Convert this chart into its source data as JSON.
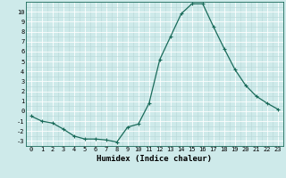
{
  "title": "",
  "xlabel": "Humidex (Indice chaleur)",
  "x": [
    0,
    1,
    2,
    3,
    4,
    5,
    6,
    7,
    8,
    9,
    10,
    11,
    12,
    13,
    14,
    15,
    16,
    17,
    18,
    19,
    20,
    21,
    22,
    23
  ],
  "y": [
    -0.5,
    -1.0,
    -1.2,
    -1.8,
    -2.5,
    -2.8,
    -2.8,
    -2.9,
    -3.1,
    -1.6,
    -1.3,
    0.8,
    5.2,
    7.5,
    9.8,
    10.8,
    10.8,
    8.5,
    6.3,
    4.2,
    2.6,
    1.5,
    0.8,
    0.2
  ],
  "line_color": "#1a6b5a",
  "marker": "+",
  "marker_size": 3,
  "marker_linewidth": 0.8,
  "line_width": 0.9,
  "bg_color": "#ceeaea",
  "grid_major_color": "#ffffff",
  "grid_minor_color": "#b8d8d8",
  "spine_color": "#1a6b5a",
  "ylim": [
    -3.5,
    11.0
  ],
  "xlim": [
    -0.5,
    23.5
  ],
  "yticks": [
    -3,
    -2,
    -1,
    0,
    1,
    2,
    3,
    4,
    5,
    6,
    7,
    8,
    9,
    10
  ],
  "xticks": [
    0,
    1,
    2,
    3,
    4,
    5,
    6,
    7,
    8,
    9,
    10,
    11,
    12,
    13,
    14,
    15,
    16,
    17,
    18,
    19,
    20,
    21,
    22,
    23
  ],
  "tick_fontsize": 5,
  "label_fontsize": 6.5
}
